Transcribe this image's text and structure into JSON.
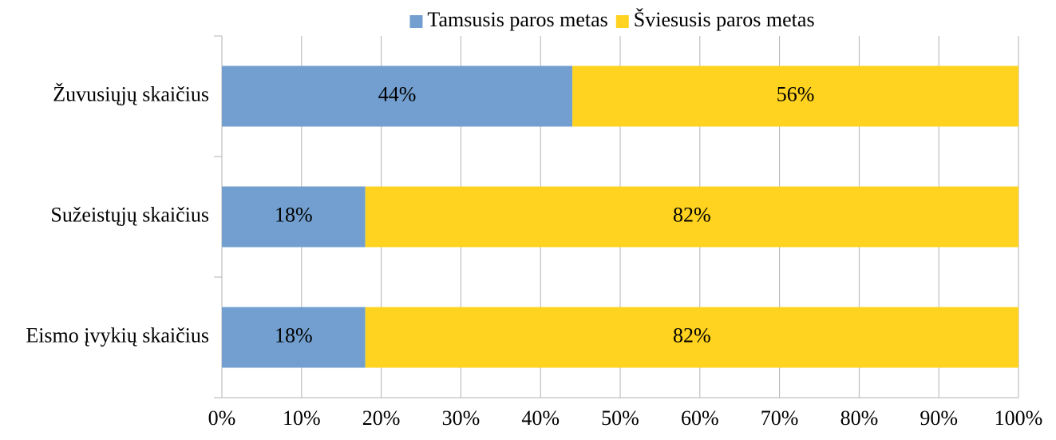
{
  "chart_data": {
    "type": "bar",
    "orientation": "horizontal",
    "stacked": true,
    "categories": [
      "Žuvusiųjų skaičius",
      "Sužeistųjų skaičius",
      "Eismo įvykių skaičius"
    ],
    "series": [
      {
        "name": "Tamsusis paros metas",
        "color": "#729fcf",
        "values": [
          44,
          18,
          18
        ],
        "value_labels": [
          "44%",
          "18%",
          "18%"
        ]
      },
      {
        "name": "Šviesusis paros metas",
        "color": "#ffd320",
        "values": [
          56,
          82,
          82
        ],
        "value_labels": [
          "56%",
          "82%",
          "82%"
        ]
      }
    ],
    "xlim": [
      0,
      100
    ],
    "xticks": [
      {
        "value": 0,
        "label": "0%"
      },
      {
        "value": 10,
        "label": "10%"
      },
      {
        "value": 20,
        "label": "20%"
      },
      {
        "value": 30,
        "label": "30%"
      },
      {
        "value": 40,
        "label": "40%"
      },
      {
        "value": 50,
        "label": "50%"
      },
      {
        "value": 60,
        "label": "60%"
      },
      {
        "value": 70,
        "label": "70%"
      },
      {
        "value": 80,
        "label": "80%"
      },
      {
        "value": 90,
        "label": "90%"
      },
      {
        "value": 100,
        "label": "100%"
      }
    ],
    "grid": true,
    "legend": "top"
  }
}
